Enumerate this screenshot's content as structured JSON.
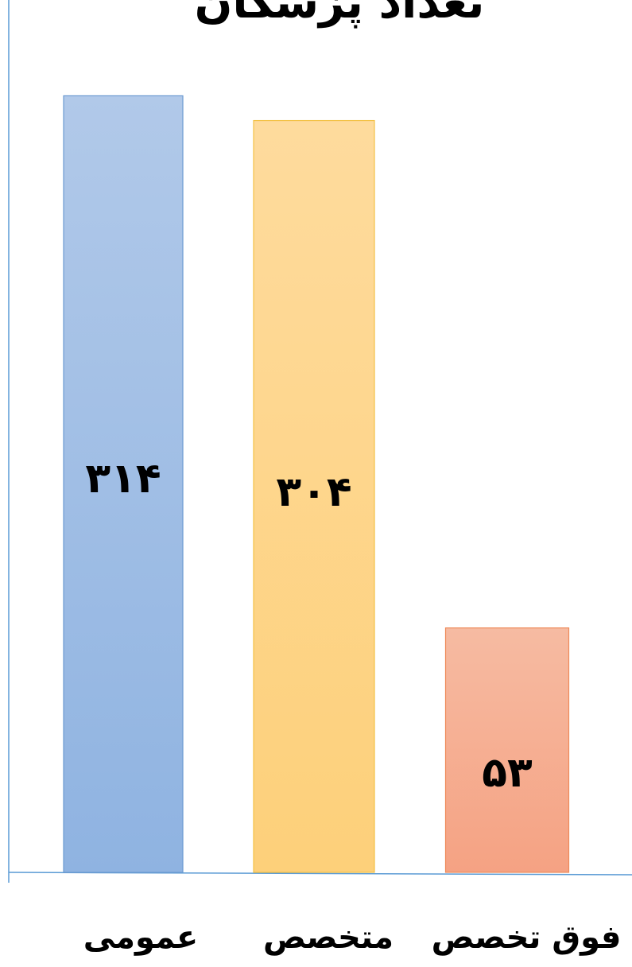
{
  "chart_data": {
    "type": "bar",
    "title": "تعداد پزشکان",
    "categories": [
      "عمومی",
      "متخصص",
      "فوق تخصص"
    ],
    "values": [
      314,
      304,
      53
    ],
    "value_labels": [
      "۳۱۴",
      "۳۰۴",
      "۵۳"
    ],
    "colors": [
      "#95b6e2",
      "#fdd27f",
      "#f5a487"
    ],
    "grid": false,
    "legend": "none"
  }
}
